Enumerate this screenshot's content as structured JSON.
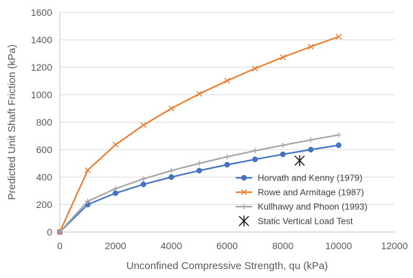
{
  "chart_data": {
    "type": "scatter",
    "title": "",
    "xlabel": "Unconfined Compressive Strength, qu (kPa)",
    "ylabel": "Predicted Unit Shaft Friction (kPa)",
    "xlim": [
      0,
      12000
    ],
    "ylim": [
      0,
      1600
    ],
    "xticks": [
      0,
      2000,
      4000,
      6000,
      8000,
      10000,
      12000
    ],
    "yticks": [
      0,
      200,
      400,
      600,
      800,
      1000,
      1200,
      1400,
      1600
    ],
    "grid": "horizontal",
    "legend_position": "bottom-right",
    "series": [
      {
        "name": "Horvath and Kenny (1979)",
        "color": "#4472c4",
        "marker": "circle",
        "x": [
          0,
          1000,
          2000,
          3000,
          4000,
          5000,
          6000,
          7000,
          8000,
          9000,
          10000
        ],
        "y": [
          0,
          200,
          283,
          347,
          400,
          447,
          490,
          529,
          566,
          600,
          632
        ]
      },
      {
        "name": "Rowe and Armitage (1987)",
        "color": "#ed7d31",
        "marker": "x",
        "x": [
          0,
          1000,
          2000,
          3000,
          4000,
          5000,
          6000,
          7000,
          8000,
          9000,
          10000
        ],
        "y": [
          0,
          450,
          636,
          779,
          900,
          1006,
          1102,
          1191,
          1273,
          1350,
          1423
        ]
      },
      {
        "name": "Kullhawy and Phoon (1993)",
        "color": "#a5a5a5",
        "marker": "plus",
        "x": [
          0,
          1000,
          2000,
          3000,
          4000,
          5000,
          6000,
          7000,
          8000,
          9000,
          10000
        ],
        "y": [
          0,
          224,
          316,
          387,
          447,
          500,
          548,
          592,
          632,
          671,
          707
        ]
      },
      {
        "name": "Static Vertical Load Test",
        "color": "#000000",
        "marker": "asterisk",
        "x": [
          8600
        ],
        "y": [
          520
        ]
      }
    ]
  }
}
